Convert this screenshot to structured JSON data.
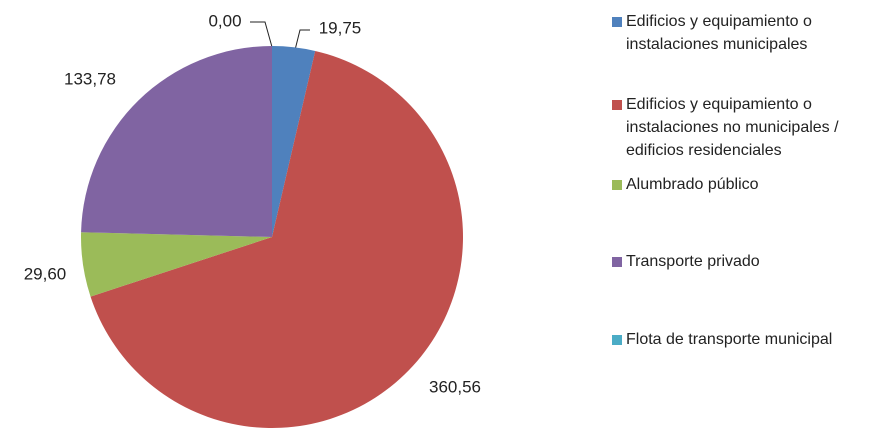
{
  "chart_data": {
    "type": "pie",
    "categories": [
      "Edificios y equipamiento o instalaciones municipales",
      "Edificios y equipamiento o instalaciones no municipales / edificios residenciales",
      "Alumbrado público",
      "Transporte privado",
      "Flota de transporte municipal"
    ],
    "values": [
      19.75,
      360.56,
      29.6,
      133.78,
      0.0
    ],
    "value_labels": [
      "19,75",
      "360,56",
      "29,60",
      "133,78",
      "0,00"
    ],
    "colors": [
      "#4f81bd",
      "#c0504d",
      "#9bbb59",
      "#8064a2",
      "#4bacc6"
    ],
    "legend": "right"
  }
}
